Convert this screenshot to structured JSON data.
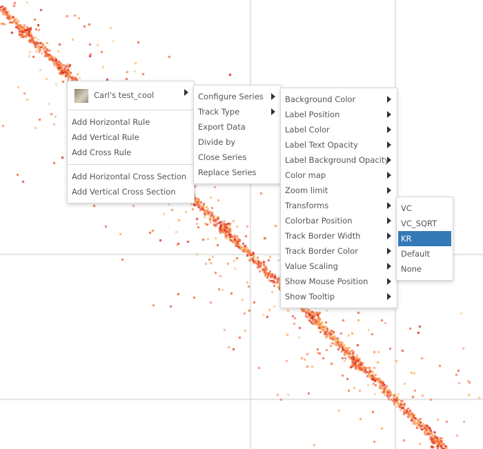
{
  "colors": {
    "diagonal": "#d73027",
    "mid": "#f46d43",
    "light": "#fdae61",
    "selected_bg": "#337ab7"
  },
  "context_menu": {
    "track_name": "Carl's test_cool",
    "track_thumbnail_icon": "heatmap-thumbnail-icon",
    "items": [
      "Add Horizontal Rule",
      "Add Vertical Rule",
      "Add Cross Rule",
      "Add Horizontal Cross Section",
      "Add Vertical Cross Section"
    ]
  },
  "series_menu": {
    "items": [
      "Configure Series",
      "Track Type",
      "Export Data",
      "Divide by",
      "Close Series",
      "Replace Series"
    ]
  },
  "configure_menu": {
    "items": [
      "Background Color",
      "Label Position",
      "Label Color",
      "Label Text Opacity",
      "Label Background Opacity",
      "Color map",
      "Zoom limit",
      "Transforms",
      "Colorbar Position",
      "Track Border Width",
      "Track Border Color",
      "Value Scaling",
      "Show Mouse Position",
      "Show Tooltip"
    ]
  },
  "transforms_menu": {
    "items": [
      "VC",
      "VC_SQRT",
      "KR",
      "Default",
      "None"
    ],
    "selected": "KR"
  }
}
